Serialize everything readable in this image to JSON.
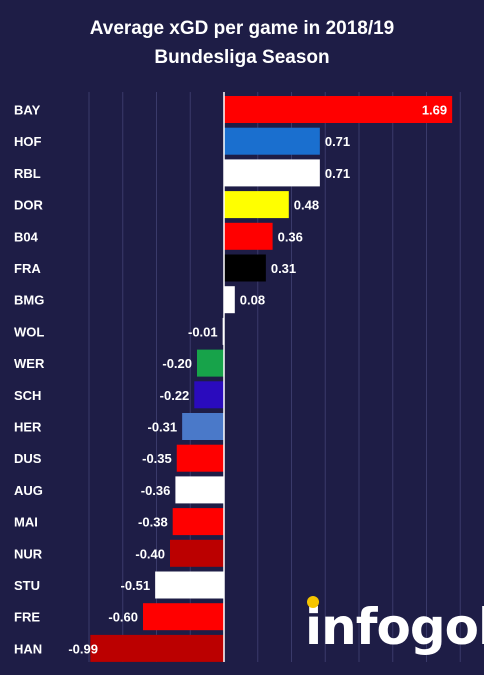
{
  "chart_data": {
    "type": "bar",
    "orientation": "horizontal",
    "title_line1": "Average xGD per game in 2018/19",
    "title_line2": "Bundesliga Season",
    "categories": [
      "BAY",
      "HOF",
      "RBL",
      "DOR",
      "B04",
      "FRA",
      "BMG",
      "WOL",
      "WER",
      "SCH",
      "HER",
      "DUS",
      "AUG",
      "MAI",
      "NUR",
      "STU",
      "FRE",
      "HAN"
    ],
    "values": [
      1.69,
      0.71,
      0.71,
      0.48,
      0.36,
      0.31,
      0.08,
      -0.01,
      -0.2,
      -0.22,
      -0.31,
      -0.35,
      -0.36,
      -0.38,
      -0.4,
      -0.51,
      -0.6,
      -0.99
    ],
    "value_labels": [
      "1.69",
      "0.71",
      "0.71",
      "0.48",
      "0.36",
      "0.31",
      "0.08",
      "-0.01",
      "-0.20",
      "-0.22",
      "-0.31",
      "-0.35",
      "-0.36",
      "-0.38",
      "-0.40",
      "-0.51",
      "-0.60",
      "-0.99"
    ],
    "colors": [
      "#ff0000",
      "#1a6fcf",
      "#ffffff",
      "#ffff00",
      "#ff0000",
      "#000000",
      "#ffffff",
      "#ffffff",
      "#17a34a",
      "#2a0bbd",
      "#4a79c9",
      "#ff0000",
      "#ffffff",
      "#ff0000",
      "#bb0000",
      "#ffffff",
      "#ff0000",
      "#bb0000"
    ],
    "xlim": [
      -1.1,
      1.8
    ],
    "grid": true,
    "background": "#1e1d46"
  },
  "brand": {
    "logo_text": "infogol"
  }
}
